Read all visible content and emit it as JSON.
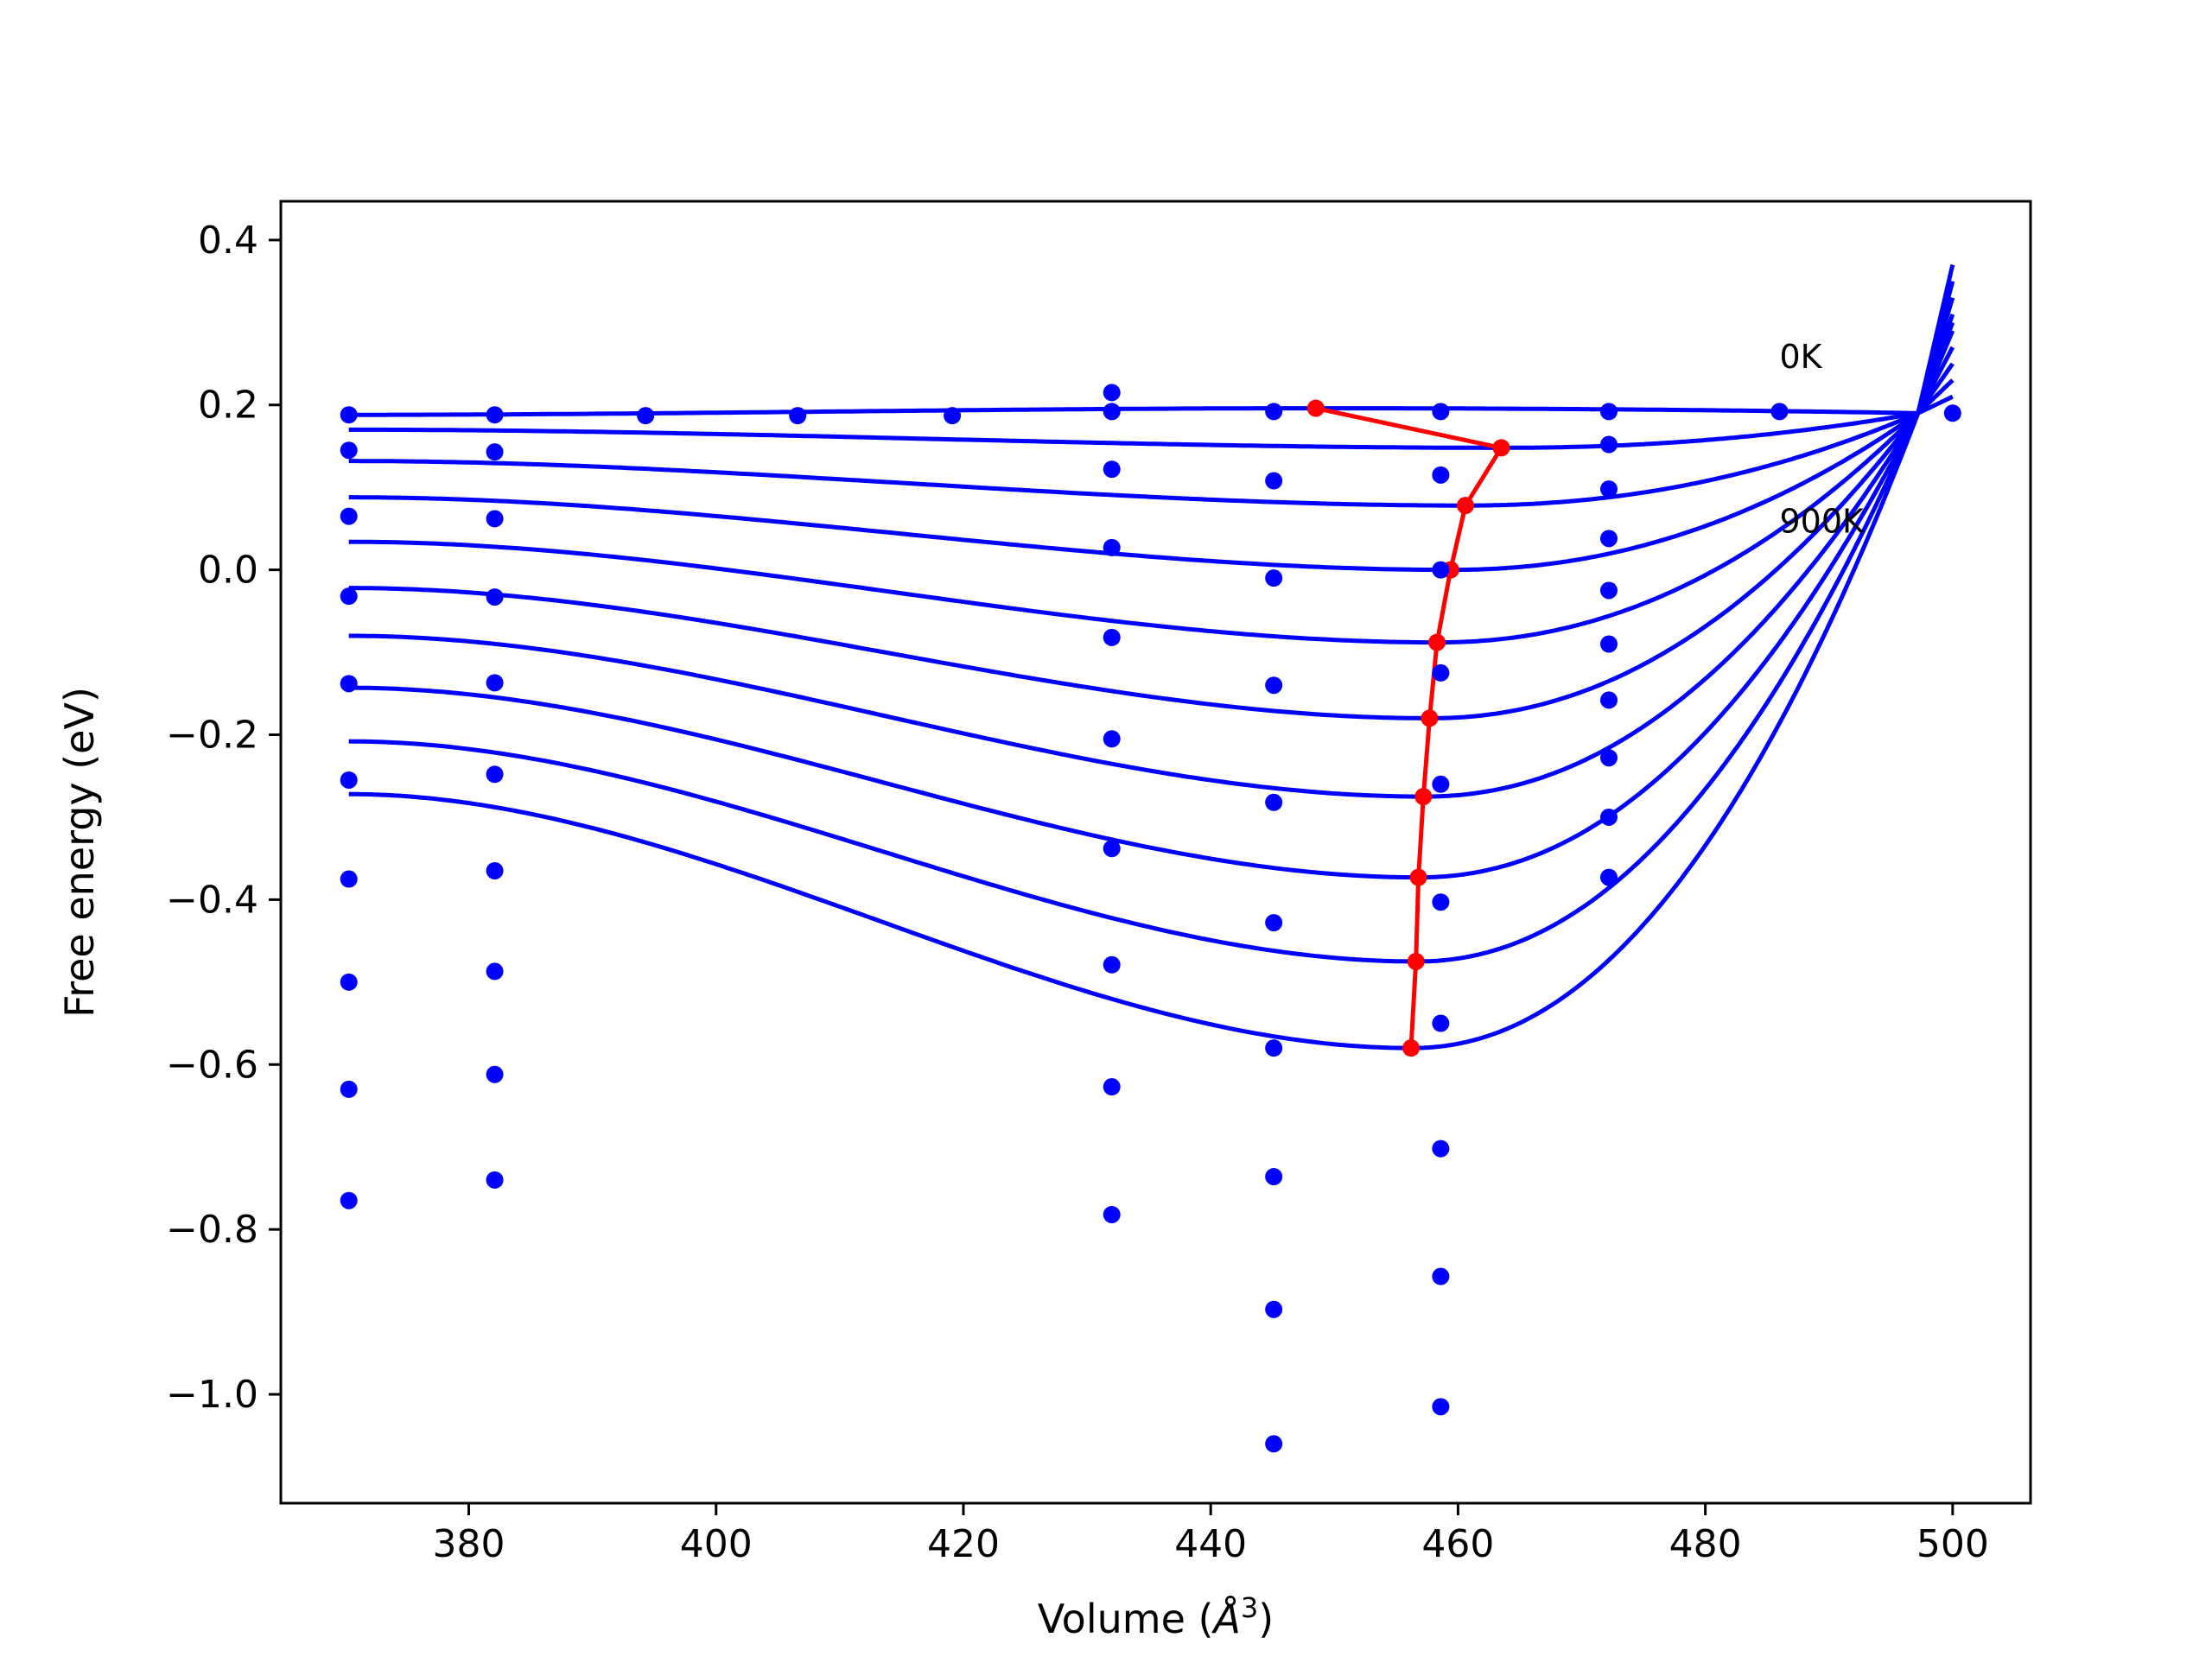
{
  "chart_data": {
    "type": "line",
    "title": "",
    "xlabel": "Volume (",
    "xlabel_symbol": "Å",
    "xlabel_exponent": "3",
    "xlabel_suffix": ")",
    "ylabel": "Free energy (eV)",
    "xlim": [
      364.8,
      506.3
    ],
    "ylim": [
      -1.132,
      0.447
    ],
    "x_ticks": [
      380,
      400,
      420,
      440,
      460,
      480,
      500
    ],
    "y_ticks": [
      0.4,
      0.2,
      0.0,
      -0.2,
      -0.4,
      -0.6,
      -0.8,
      -1.0
    ],
    "x_tick_labels": [
      "380",
      "400",
      "420",
      "440",
      "460",
      "480",
      "500"
    ],
    "y_tick_labels": [
      "0.4",
      "0.2",
      "0.0",
      "−0.2",
      "−0.4",
      "−0.6",
      "−0.8",
      "−1.0"
    ],
    "grid": false,
    "colors": {
      "fit": "#0000ff",
      "points": "#0000ff",
      "minima": "#ff0000"
    },
    "annotations": [
      {
        "text": "0K",
        "x": 486,
        "y": 0.245
      },
      {
        "text": "900K",
        "x": 486,
        "y": 0.045
      }
    ],
    "fit_curves": {
      "x_range": [
        370.3,
        500
      ],
      "meeting_point": {
        "x": 497.2,
        "y": 0.19
      },
      "end_values_at_500": [
        0.21,
        0.23,
        0.25,
        0.27,
        0.29,
        0.3,
        0.31,
        0.33,
        0.35,
        0.37
      ],
      "series": [
        {
          "values_at": [
            [
              370.3,
              0.188
            ],
            [
              449,
              0.196
            ],
            [
              497.2,
              0.19
            ]
          ],
          "min": [
            448.5,
            0.196
          ]
        },
        {
          "values_at": [
            [
              370.3,
              0.17
            ],
            [
              463,
              0.148
            ],
            [
              497.2,
              0.19
            ]
          ],
          "min": [
            463.5,
            0.148
          ]
        },
        {
          "values_at": [
            [
              370.3,
              0.132
            ],
            [
              460.6,
              0.078
            ],
            [
              497.2,
              0.19
            ]
          ],
          "min": [
            460.6,
            0.078
          ]
        },
        {
          "values_at": [
            [
              370.3,
              0.088
            ],
            [
              459.4,
              0.0
            ],
            [
              497.2,
              0.19
            ]
          ],
          "min": [
            459.4,
            0.0
          ]
        },
        {
          "values_at": [
            [
              370.3,
              0.034
            ],
            [
              458.3,
              -0.088
            ],
            [
              497.2,
              0.19
            ]
          ],
          "min": [
            458.3,
            -0.088
          ]
        },
        {
          "values_at": [
            [
              370.3,
              -0.022
            ],
            [
              457.7,
              -0.18
            ],
            [
              497.2,
              0.19
            ]
          ],
          "min": [
            457.7,
            -0.18
          ]
        },
        {
          "values_at": [
            [
              370.3,
              -0.08
            ],
            [
              457.2,
              -0.275
            ],
            [
              497.2,
              0.19
            ]
          ],
          "min": [
            457.2,
            -0.275
          ]
        },
        {
          "values_at": [
            [
              370.3,
              -0.143
            ],
            [
              456.8,
              -0.373
            ],
            [
              497.2,
              0.19
            ]
          ],
          "min": [
            456.8,
            -0.373
          ]
        },
        {
          "values_at": [
            [
              370.3,
              -0.208
            ],
            [
              456.6,
              -0.475
            ],
            [
              497.2,
              0.19
            ]
          ],
          "min": [
            456.6,
            -0.475
          ]
        },
        {
          "values_at": [
            [
              370.3,
              -0.272
            ],
            [
              456.2,
              -0.58
            ],
            [
              497.2,
              0.19
            ]
          ],
          "min": [
            456.2,
            -0.58
          ]
        }
      ]
    },
    "minima_line": {
      "x": [
        448.5,
        463.5,
        460.6,
        459.4,
        458.3,
        457.7,
        457.2,
        456.8,
        456.6,
        456.2
      ],
      "y": [
        0.196,
        0.148,
        0.078,
        0.0,
        -0.088,
        -0.18,
        -0.275,
        -0.373,
        -0.475,
        -0.58
      ]
    },
    "data_points": {
      "columns": [
        {
          "x": 370.3,
          "y": [
            0.188,
            0.145,
            0.065,
            -0.032,
            -0.138,
            -0.255,
            -0.375,
            -0.5,
            -0.63,
            -0.765
          ]
        },
        {
          "x": 382.1,
          "y": [
            0.188,
            0.143,
            0.062,
            -0.033,
            -0.137,
            -0.248,
            -0.365,
            -0.487,
            -0.612,
            -0.74
          ]
        },
        {
          "x": 394.3,
          "y": [
            0.187
          ]
        },
        {
          "x": 406.6,
          "y": [
            0.187
          ]
        },
        {
          "x": 419.1,
          "y": [
            0.187
          ]
        },
        {
          "x": 432.0,
          "y": [
            0.215,
            0.192,
            0.122,
            0.027,
            -0.082,
            -0.205,
            -0.338,
            -0.479,
            -0.627,
            -0.782
          ]
        },
        {
          "x": 445.1,
          "y": [
            0.192,
            0.108,
            -0.01,
            -0.14,
            -0.282,
            -0.428,
            -0.58,
            -0.736,
            -0.897,
            -1.06
          ]
        },
        {
          "x": 458.6,
          "y": [
            0.192,
            0.115,
            0.0,
            -0.125,
            -0.26,
            -0.403,
            -0.55,
            -0.702,
            -0.857,
            -1.015
          ]
        },
        {
          "x": 472.2,
          "y": [
            0.192,
            0.152,
            0.098,
            0.038,
            -0.025,
            -0.09,
            -0.158,
            -0.228,
            -0.3,
            -0.373
          ]
        },
        {
          "x": 486.0,
          "y": [
            0.192
          ]
        },
        {
          "x": 500.0,
          "y": [
            0.19
          ]
        }
      ]
    }
  }
}
